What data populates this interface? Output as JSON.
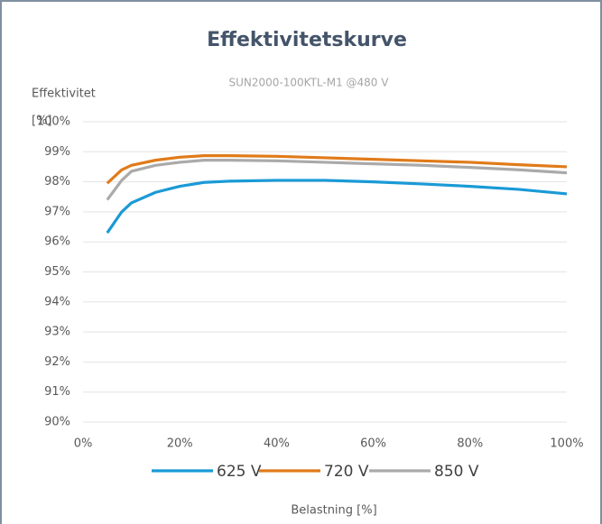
{
  "chart_data": {
    "type": "line",
    "title": "Effektivitetskurve",
    "subtitle": "SUN2000-100KTL-M1 @480 V",
    "y_label_lines": [
      "Effektivitet",
      "[%]"
    ],
    "x_label": "Belastning [%]",
    "x": [
      5,
      8,
      10,
      15,
      20,
      25,
      30,
      40,
      50,
      60,
      70,
      80,
      90,
      100
    ],
    "series": [
      {
        "name": "625 V",
        "color": "#1a9ad6",
        "values": [
          96.3,
          97.0,
          97.3,
          97.65,
          97.85,
          97.98,
          98.02,
          98.05,
          98.05,
          98.0,
          97.93,
          97.85,
          97.75,
          97.6
        ]
      },
      {
        "name": "720 V",
        "color": "#e07b1a",
        "values": [
          97.95,
          98.4,
          98.55,
          98.72,
          98.82,
          98.87,
          98.87,
          98.85,
          98.8,
          98.75,
          98.7,
          98.65,
          98.57,
          98.5
        ]
      },
      {
        "name": "850 V",
        "color": "#aaaaaa",
        "values": [
          97.4,
          98.05,
          98.35,
          98.55,
          98.65,
          98.72,
          98.72,
          98.7,
          98.65,
          98.6,
          98.55,
          98.48,
          98.4,
          98.3
        ]
      }
    ],
    "xlim": [
      0,
      100
    ],
    "xticks": [
      {
        "value": 0,
        "label": "0%"
      },
      {
        "value": 20,
        "label": "20%"
      },
      {
        "value": 40,
        "label": "40%"
      },
      {
        "value": 60,
        "label": "60%"
      },
      {
        "value": 80,
        "label": "80%"
      },
      {
        "value": 100,
        "label": "100%"
      }
    ],
    "ylim": [
      90,
      100
    ],
    "yticks": [
      {
        "value": 90,
        "label": "90%"
      },
      {
        "value": 91,
        "label": "91%"
      },
      {
        "value": 92,
        "label": "92%"
      },
      {
        "value": 93,
        "label": "93%"
      },
      {
        "value": 94,
        "label": "94%"
      },
      {
        "value": 95,
        "label": "95%"
      },
      {
        "value": 96,
        "label": "96%"
      },
      {
        "value": 97,
        "label": "97%"
      },
      {
        "value": 98,
        "label": "98%"
      },
      {
        "value": 99,
        "label": "99%"
      },
      {
        "value": 100,
        "label": "100%"
      }
    ],
    "grid": true,
    "legend": "bottom"
  }
}
